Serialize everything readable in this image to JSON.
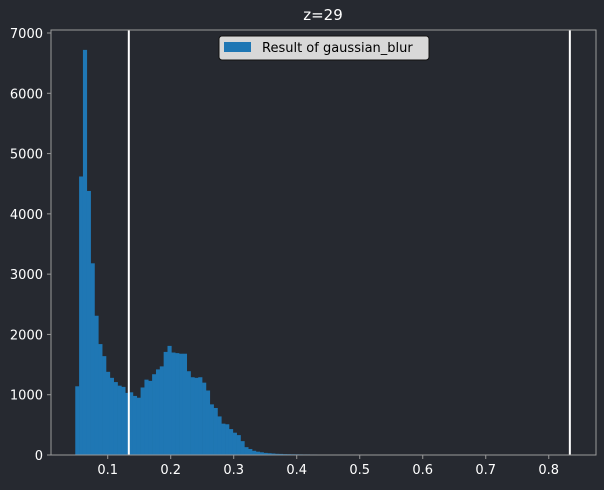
{
  "colors": {
    "background": "#262930",
    "axes_frame": "#9a9a9a",
    "text": "#ffffff",
    "histogram": "#1f77b4",
    "contrast_line": "#ffffff",
    "legend_bg": "#d8d8d8",
    "legend_border": "#111111"
  },
  "chart_data": {
    "type": "bar",
    "subtype": "histogram",
    "title": "z=29",
    "xlabel": "",
    "ylabel": "",
    "xlim": [
      0.01,
      0.875
    ],
    "ylim": [
      0,
      7050
    ],
    "xticks": [
      0.1,
      0.2,
      0.3,
      0.4,
      0.5,
      0.6,
      0.7,
      0.8
    ],
    "xtick_labels": [
      "0.1",
      "0.2",
      "0.3",
      "0.4",
      "0.5",
      "0.6",
      "0.7",
      "0.8"
    ],
    "yticks": [
      0,
      1000,
      2000,
      3000,
      4000,
      5000,
      6000,
      7000
    ],
    "ytick_labels": [
      "0",
      "1000",
      "2000",
      "3000",
      "4000",
      "5000",
      "6000",
      "7000"
    ],
    "grid": false,
    "legend": {
      "position": "top-center"
    },
    "series": [
      {
        "name": "Result of gaussian_blur",
        "bin_start": 0.0485,
        "bin_width": 0.0061,
        "values": [
          1140,
          4620,
          6720,
          4380,
          3180,
          2310,
          1840,
          1640,
          1380,
          1280,
          1210,
          1150,
          1130,
          1030,
          1040,
          980,
          950,
          1120,
          1250,
          1230,
          1340,
          1420,
          1470,
          1710,
          1810,
          1700,
          1690,
          1680,
          1680,
          1390,
          1290,
          1280,
          1290,
          1200,
          1070,
          840,
          780,
          640,
          520,
          510,
          430,
          370,
          330,
          230,
          130,
          100,
          70,
          55,
          45,
          35,
          30,
          25,
          20,
          18,
          15,
          14,
          13,
          12,
          11,
          10,
          10,
          9,
          9,
          8,
          8,
          7,
          7,
          6,
          6,
          5,
          5,
          5,
          4,
          4,
          3,
          3,
          3,
          3,
          2,
          2,
          2,
          2,
          2,
          2,
          1,
          1,
          1,
          1,
          1,
          1,
          1,
          1,
          1,
          1,
          1,
          1,
          1,
          1,
          1,
          1
        ]
      }
    ],
    "vertical_lines": [
      0.1335,
      0.8335
    ]
  }
}
